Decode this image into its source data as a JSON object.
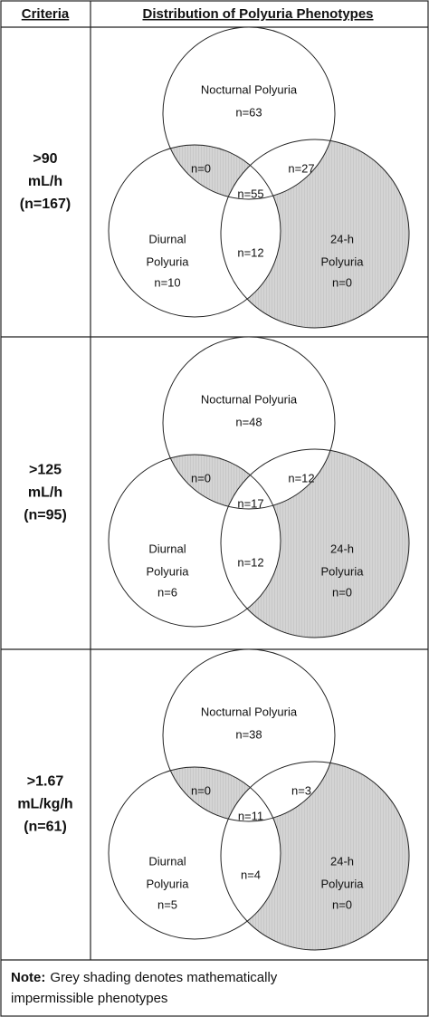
{
  "header": {
    "criteria": "Criteria",
    "distribution": "Distribution of Polyuria Phenotypes"
  },
  "rows": [
    {
      "criteria": [
        ">90",
        "mL/h",
        "(n=167)"
      ],
      "venn": {
        "nocturnal_label": "Nocturnal Polyuria",
        "nocturnal_n": "n=63",
        "nocturnal_diurnal": "n=0",
        "nocturnal_24h": "n=27",
        "all_three": "n=55",
        "diurnal_label": [
          "Diurnal",
          "Polyuria"
        ],
        "diurnal_n": "n=10",
        "diurnal_24h": "n=12",
        "h24_label": [
          "24-h",
          "Polyuria"
        ],
        "h24_n": "n=0"
      }
    },
    {
      "criteria": [
        ">125",
        "mL/h",
        "(n=95)"
      ],
      "venn": {
        "nocturnal_label": "Nocturnal Polyuria",
        "nocturnal_n": "n=48",
        "nocturnal_diurnal": "n=0",
        "nocturnal_24h": "n=12",
        "all_three": "n=17",
        "diurnal_label": [
          "Diurnal",
          "Polyuria"
        ],
        "diurnal_n": "n=6",
        "diurnal_24h": "n=12",
        "h24_label": [
          "24-h",
          "Polyuria"
        ],
        "h24_n": "n=0"
      }
    },
    {
      "criteria": [
        ">1.67",
        "mL/kg/h",
        "(n=61)"
      ],
      "venn": {
        "nocturnal_label": "Nocturnal Polyuria",
        "nocturnal_n": "n=38",
        "nocturnal_diurnal": "n=0",
        "nocturnal_24h": "n=3",
        "all_three": "n=11",
        "diurnal_label": [
          "Diurnal",
          "Polyuria"
        ],
        "diurnal_n": "n=5",
        "diurnal_24h": "n=4",
        "h24_label": [
          "24-h",
          "Polyuria"
        ],
        "h24_n": "n=0"
      }
    }
  ],
  "note": {
    "label": "Note:",
    "text": [
      "Grey shading denotes mathematically",
      "impermissible phenotypes"
    ]
  }
}
